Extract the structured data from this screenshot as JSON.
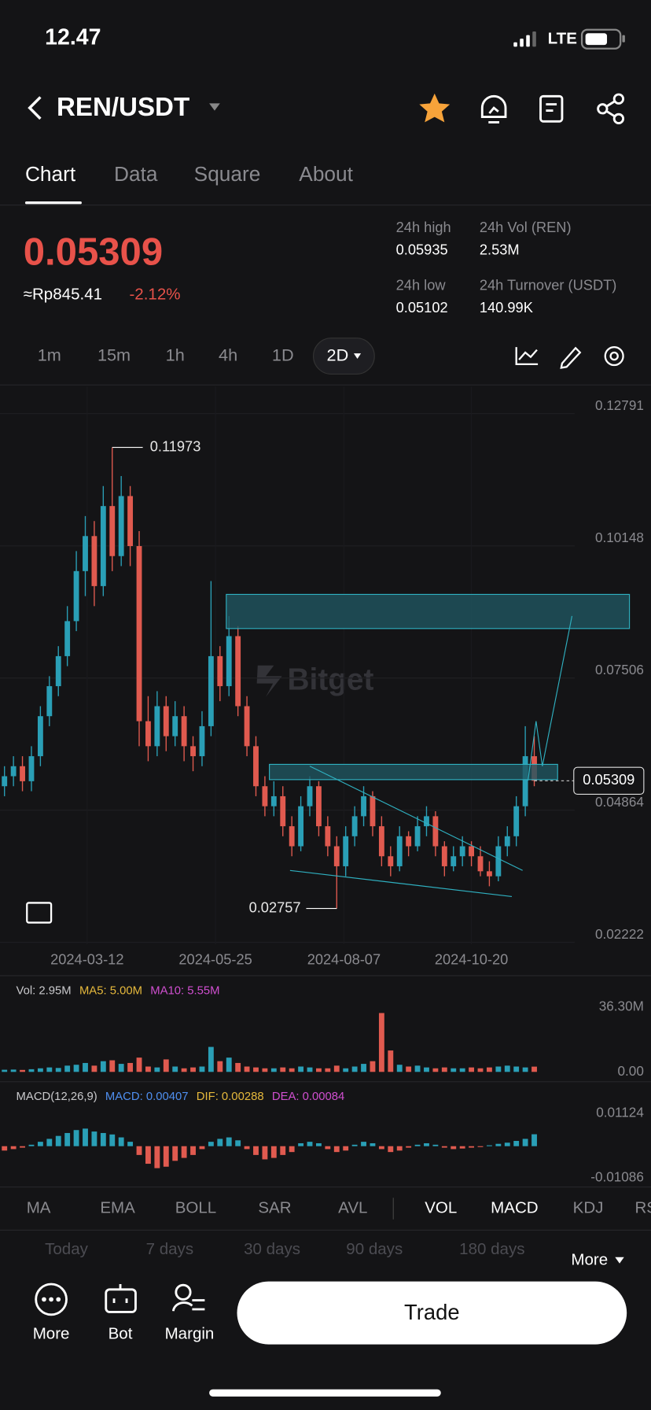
{
  "status": {
    "time": "12.47",
    "network": "LTE"
  },
  "header": {
    "pair": "REN/USDT"
  },
  "tabs": [
    "Chart",
    "Data",
    "Square",
    "About"
  ],
  "price": {
    "last": "0.05309",
    "fiat": "≈Rp845.41",
    "change": "-2.12%"
  },
  "stats": [
    {
      "label": "24h high",
      "value": "0.05935"
    },
    {
      "label": "24h Vol (REN)",
      "value": "2.53M"
    },
    {
      "label": "24h low",
      "value": "0.05102"
    },
    {
      "label": "24h Turnover (USDT)",
      "value": "140.99K"
    }
  ],
  "intervals": [
    "1m",
    "15m",
    "1h",
    "4h",
    "1D",
    "2D"
  ],
  "watermark": "Bitget",
  "chart_data": [
    {
      "type": "candlestick",
      "up_color": "#2a9fb6",
      "down_color": "#e05a4f",
      "grid": true,
      "ylim": [
        0.02222,
        0.12791
      ],
      "yticks": [
        0.12791,
        0.10148,
        0.07506,
        0.04864,
        0.02222
      ],
      "xlim": [
        -0.5,
        72
      ],
      "xticks": [
        {
          "value": 9.2,
          "label": "2024-03-12"
        },
        {
          "value": 23.5,
          "label": "2024-05-25"
        },
        {
          "value": 37.8,
          "label": "2024-08-07"
        },
        {
          "value": 52,
          "label": "2024-10-20"
        }
      ],
      "annotations": [
        {
          "label": "0.11973",
          "value": 0.11973,
          "index": 12
        },
        {
          "label": "0.02757",
          "value": 0.02757,
          "index": 37
        }
      ],
      "last": {
        "label": "0.05309",
        "value": 0.05309
      },
      "values": [
        [
          0.052,
          0.056,
          0.05,
          0.054
        ],
        [
          0.054,
          0.058,
          0.052,
          0.056
        ],
        [
          0.056,
          0.058,
          0.051,
          0.053
        ],
        [
          0.053,
          0.06,
          0.051,
          0.058
        ],
        [
          0.058,
          0.068,
          0.056,
          0.066
        ],
        [
          0.066,
          0.074,
          0.064,
          0.072
        ],
        [
          0.072,
          0.08,
          0.07,
          0.078
        ],
        [
          0.078,
          0.088,
          0.076,
          0.085
        ],
        [
          0.085,
          0.099,
          0.083,
          0.095
        ],
        [
          0.095,
          0.106,
          0.09,
          0.102
        ],
        [
          0.102,
          0.105,
          0.088,
          0.092
        ],
        [
          0.092,
          0.112,
          0.09,
          0.108
        ],
        [
          0.108,
          0.11973,
          0.095,
          0.098
        ],
        [
          0.098,
          0.114,
          0.096,
          0.11
        ],
        [
          0.11,
          0.112,
          0.096,
          0.1
        ],
        [
          0.1,
          0.103,
          0.06,
          0.065
        ],
        [
          0.065,
          0.07,
          0.057,
          0.06
        ],
        [
          0.06,
          0.071,
          0.058,
          0.068
        ],
        [
          0.068,
          0.07,
          0.059,
          0.062
        ],
        [
          0.062,
          0.069,
          0.06,
          0.066
        ],
        [
          0.066,
          0.068,
          0.057,
          0.06
        ],
        [
          0.06,
          0.062,
          0.055,
          0.058
        ],
        [
          0.058,
          0.067,
          0.056,
          0.064
        ],
        [
          0.064,
          0.093,
          0.062,
          0.078
        ],
        [
          0.078,
          0.08,
          0.069,
          0.072
        ],
        [
          0.072,
          0.086,
          0.07,
          0.082
        ],
        [
          0.082,
          0.084,
          0.066,
          0.068
        ],
        [
          0.068,
          0.07,
          0.058,
          0.06
        ],
        [
          0.06,
          0.062,
          0.05,
          0.052
        ],
        [
          0.052,
          0.054,
          0.046,
          0.048
        ],
        [
          0.048,
          0.053,
          0.046,
          0.05
        ],
        [
          0.05,
          0.052,
          0.042,
          0.044
        ],
        [
          0.044,
          0.046,
          0.038,
          0.04
        ],
        [
          0.04,
          0.05,
          0.039,
          0.048
        ],
        [
          0.048,
          0.054,
          0.046,
          0.052
        ],
        [
          0.052,
          0.053,
          0.042,
          0.044
        ],
        [
          0.044,
          0.046,
          0.038,
          0.04
        ],
        [
          0.04,
          0.042,
          0.02757,
          0.036
        ],
        [
          0.036,
          0.044,
          0.034,
          0.042
        ],
        [
          0.042,
          0.048,
          0.04,
          0.046
        ],
        [
          0.046,
          0.052,
          0.044,
          0.05
        ],
        [
          0.05,
          0.051,
          0.042,
          0.044
        ],
        [
          0.044,
          0.046,
          0.036,
          0.038
        ],
        [
          0.038,
          0.04,
          0.034,
          0.036
        ],
        [
          0.036,
          0.044,
          0.035,
          0.042
        ],
        [
          0.042,
          0.043,
          0.038,
          0.04
        ],
        [
          0.04,
          0.046,
          0.039,
          0.044
        ],
        [
          0.044,
          0.048,
          0.042,
          0.046
        ],
        [
          0.046,
          0.047,
          0.038,
          0.04
        ],
        [
          0.04,
          0.041,
          0.034,
          0.036
        ],
        [
          0.036,
          0.04,
          0.035,
          0.038
        ],
        [
          0.038,
          0.042,
          0.036,
          0.04
        ],
        [
          0.04,
          0.041,
          0.036,
          0.038
        ],
        [
          0.038,
          0.04,
          0.034,
          0.035
        ],
        [
          0.035,
          0.037,
          0.032,
          0.034
        ],
        [
          0.034,
          0.042,
          0.033,
          0.04
        ],
        [
          0.04,
          0.044,
          0.038,
          0.042
        ],
        [
          0.042,
          0.05,
          0.04,
          0.048
        ],
        [
          0.048,
          0.064,
          0.046,
          0.058
        ],
        [
          0.058,
          0.062,
          0.052,
          0.05309
        ]
      ]
    },
    {
      "type": "bar",
      "legend": [
        "Vol: 2.95M",
        "MA5: 5.00M",
        "MA10: 5.55M"
      ],
      "legend_colors": [
        "#c9c9cc",
        "#e6b93c",
        "#d04fd0"
      ],
      "ylim": [
        0,
        36.3
      ],
      "yticks": [
        {
          "value": 36.3,
          "label": "36.30M"
        },
        {
          "value": 0,
          "label": "0.00"
        }
      ],
      "values": [
        1.2,
        1.3,
        1.1,
        1.5,
        2.0,
        2.5,
        2.2,
        3.5,
        4.0,
        5.0,
        3.5,
        6.0,
        6.5,
        4.5,
        5.0,
        8.0,
        3.0,
        2.5,
        7.0,
        3.0,
        2.0,
        2.5,
        3.0,
        14.0,
        6.0,
        8.0,
        5.0,
        3.0,
        2.5,
        2.0,
        2.0,
        2.5,
        2.0,
        3.0,
        2.5,
        2.0,
        2.0,
        3.5,
        2.0,
        3.0,
        4.5,
        6.0,
        33.0,
        12.0,
        4.0,
        3.0,
        3.5,
        2.5,
        2.0,
        2.5,
        2.0,
        2.0,
        2.5,
        2.0,
        2.5,
        3.0,
        3.5,
        3.0,
        2.5,
        2.95
      ]
    },
    {
      "type": "bar",
      "legend": [
        "MACD(12,26,9)",
        "MACD: 0.00407",
        "DIF: 0.00288",
        "DEA: 0.00084"
      ],
      "legend_colors": [
        "#c9c9cc",
        "#4f8ff0",
        "#e6b93c",
        "#d04fd0"
      ],
      "ylim": [
        -0.01086,
        0.01124
      ],
      "yticks": [
        0.01124,
        -0.01086
      ],
      "values": [
        -0.0015,
        -0.001,
        -0.0005,
        0.0005,
        0.0015,
        0.0025,
        0.0035,
        0.0045,
        0.0055,
        0.006,
        0.005,
        0.0045,
        0.004,
        0.003,
        0.0015,
        -0.003,
        -0.006,
        -0.0075,
        -0.007,
        -0.005,
        -0.004,
        -0.003,
        -0.001,
        0.0015,
        0.0025,
        0.003,
        0.002,
        -0.001,
        -0.003,
        -0.0045,
        -0.004,
        -0.003,
        -0.002,
        0.001,
        0.0015,
        0.001,
        -0.001,
        -0.002,
        -0.0015,
        0.0005,
        0.0015,
        0.001,
        -0.001,
        -0.002,
        -0.0015,
        -0.0005,
        0.0005,
        0.001,
        0.0005,
        -0.0005,
        -0.001,
        -0.0008,
        -0.0005,
        -0.0003,
        0.0003,
        0.0008,
        0.0012,
        0.0018,
        0.0025,
        0.00407
      ]
    }
  ],
  "indicators": [
    "MA",
    "EMA",
    "BOLL",
    "SAR",
    "AVL",
    "VOL",
    "MACD",
    "KDJ",
    "RSI"
  ],
  "periods": [
    "Today",
    "7 days",
    "30 days",
    "90 days",
    "180 days"
  ],
  "periods_more": "More",
  "bottom": {
    "actions": [
      "More",
      "Bot",
      "Margin"
    ],
    "trade": "Trade"
  }
}
